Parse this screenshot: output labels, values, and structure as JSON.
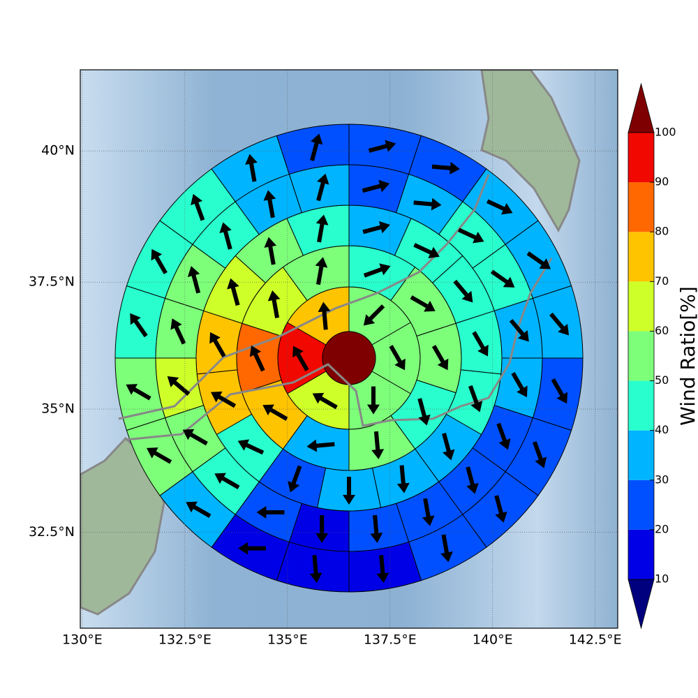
{
  "chart_data": {
    "type": "wind_map",
    "xlim": [
      129.95,
      143.05
    ],
    "ylim": [
      30.5,
      41.5
    ],
    "xticks": [
      {
        "value": 130,
        "label": "130°E"
      },
      {
        "value": 132.5,
        "label": "132.5°E"
      },
      {
        "value": 135,
        "label": "135°E"
      },
      {
        "value": 137.5,
        "label": "137.5°E"
      },
      {
        "value": 140,
        "label": "140°E"
      },
      {
        "value": 142.5,
        "label": "142.5°E"
      }
    ],
    "yticks": [
      {
        "value": 32.5,
        "label": "32.5°N"
      },
      {
        "value": 35,
        "label": "35°N"
      },
      {
        "value": 37.5,
        "label": "37.5°N"
      },
      {
        "value": 40,
        "label": "40°N"
      }
    ],
    "grid": true,
    "center_value": 105,
    "rings": [
      {
        "values": [
          55,
          55,
          55,
          65,
          95,
          75
        ],
        "directions": [
          225,
          150,
          180,
          300,
          330,
          355
        ]
      },
      {
        "values": [
          45,
          55,
          55,
          45,
          55,
          35,
          75,
          85,
          65,
          55
        ],
        "directions": [
          70,
          120,
          150,
          165,
          175,
          265,
          300,
          335,
          350,
          10
        ]
      },
      {
        "values": [
          35,
          45,
          45,
          45,
          45,
          35,
          35,
          35,
          25,
          45,
          75,
          75,
          65,
          55,
          45
        ],
        "directions": [
          75,
          115,
          140,
          150,
          160,
          165,
          175,
          180,
          200,
          295,
          300,
          330,
          345,
          350,
          10
        ]
      },
      {
        "values": [
          25,
          35,
          45,
          45,
          35,
          35,
          25,
          25,
          25,
          25,
          15,
          25,
          45,
          55,
          65,
          55,
          55,
          45,
          35,
          35
        ],
        "directions": [
          75,
          95,
          115,
          125,
          140,
          150,
          160,
          165,
          170,
          175,
          180,
          270,
          300,
          300,
          310,
          335,
          345,
          345,
          350,
          15
        ]
      },
      {
        "values": [
          25,
          25,
          35,
          35,
          35,
          25,
          25,
          25,
          25,
          15,
          15,
          15,
          35,
          55,
          55,
          45,
          45,
          45,
          35,
          25
        ],
        "directions": [
          75,
          95,
          115,
          125,
          140,
          150,
          160,
          165,
          170,
          175,
          175,
          270,
          300,
          300,
          300,
          325,
          330,
          340,
          350,
          15
        ]
      }
    ],
    "colorbar": {
      "label": "Wind Ratio[%]",
      "ticks": [
        10,
        20,
        30,
        40,
        50,
        60,
        70,
        80,
        90,
        100
      ],
      "colors": [
        "#00007f",
        "#0000e6",
        "#0050ff",
        "#00b4ff",
        "#29ffce",
        "#7dff7a",
        "#ceff29",
        "#ffc400",
        "#ff6800",
        "#f10800",
        "#7f0000"
      ]
    }
  }
}
